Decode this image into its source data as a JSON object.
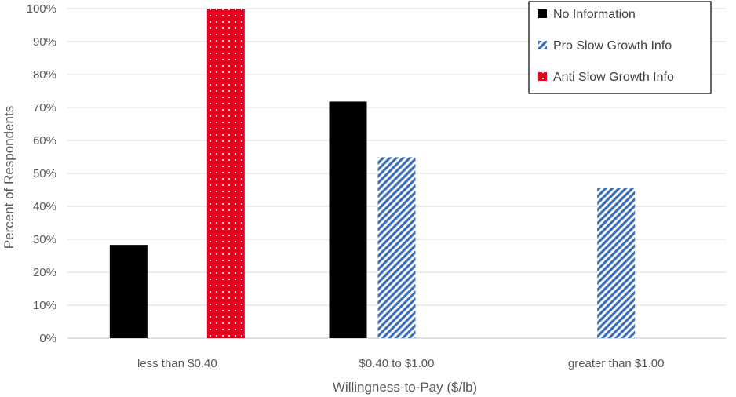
{
  "chart_data": {
    "type": "bar",
    "title": "",
    "xlabel": "Willingness-to-Pay ($/lb)",
    "ylabel": "Percent of Respondents",
    "ylim": [
      0,
      100
    ],
    "yticks": [
      "0%",
      "10%",
      "20%",
      "30%",
      "40%",
      "50%",
      "60%",
      "70%",
      "80%",
      "90%",
      "100%"
    ],
    "grid": true,
    "legend_position": "top-right",
    "categories": [
      "less than $0.40",
      "$0.40 to $1.00",
      "greater than $1.00"
    ],
    "series": [
      {
        "name": "No Information",
        "values": [
          28.3,
          71.8,
          0
        ],
        "color": "#000000",
        "pattern": "solid"
      },
      {
        "name": "Pro Slow Growth Info",
        "values": [
          0,
          54.9,
          45.5
        ],
        "color": "#3b6db8",
        "pattern": "diagonal-stripes"
      },
      {
        "name": "Anti Slow Growth Info",
        "values": [
          100,
          0,
          0
        ],
        "color": "#e8001c",
        "pattern": "dotted"
      }
    ]
  }
}
